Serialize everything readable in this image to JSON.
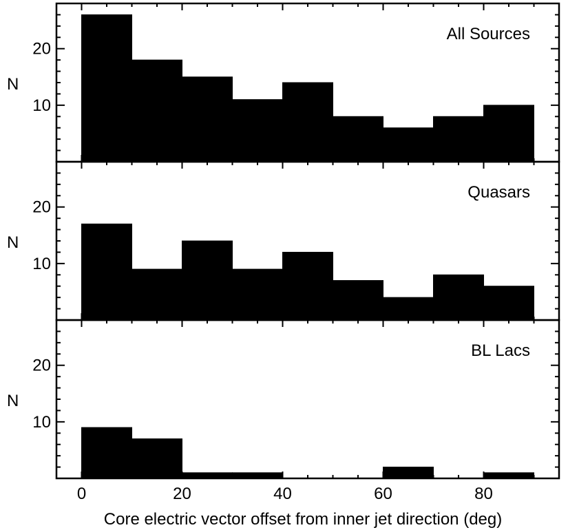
{
  "chart_data": {
    "type": "bar",
    "bins": [
      [
        0,
        10
      ],
      [
        10,
        20
      ],
      [
        20,
        30
      ],
      [
        30,
        40
      ],
      [
        40,
        50
      ],
      [
        50,
        60
      ],
      [
        60,
        70
      ],
      [
        70,
        80
      ],
      [
        80,
        90
      ]
    ],
    "xlabel": "Core electric vector offset from inner jet direction (deg)",
    "ylabel": "N",
    "xlim": [
      -5,
      95
    ],
    "ylim": [
      0,
      28
    ],
    "x_ticks": [
      0,
      20,
      40,
      60,
      80
    ],
    "y_ticks": [
      10,
      20
    ],
    "grid": false,
    "panels": [
      {
        "label": "All Sources",
        "values": [
          26,
          18,
          15,
          11,
          14,
          8,
          6,
          8,
          10
        ]
      },
      {
        "label": "Quasars",
        "values": [
          17,
          9,
          14,
          9,
          12,
          7,
          4,
          8,
          6
        ]
      },
      {
        "label": "BL Lacs",
        "values": [
          9,
          7,
          1,
          1,
          0,
          0,
          2,
          0,
          1
        ]
      }
    ]
  }
}
